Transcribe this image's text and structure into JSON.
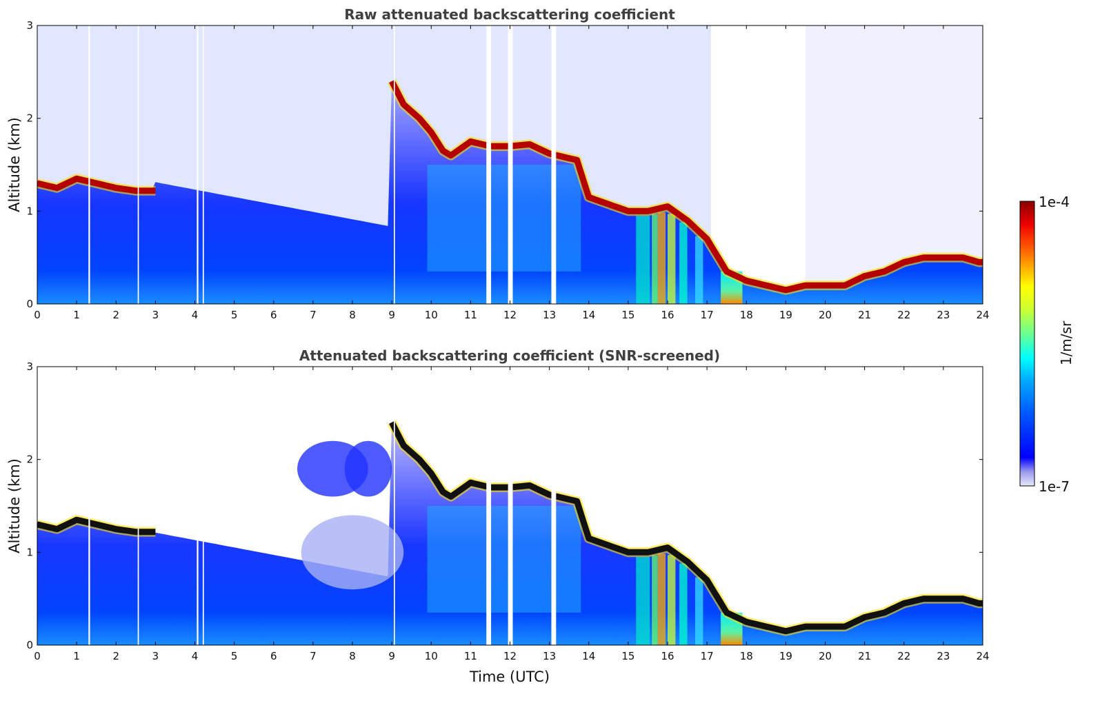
{
  "chart_data": [
    {
      "type": "heatmap",
      "title": "Raw attenuated backscattering coefficient",
      "ylabel": "Altitude (km)",
      "xlabel": "",
      "xlim": [
        0,
        24
      ],
      "ylim": [
        0,
        3
      ],
      "x_ticks": [
        "0",
        "1",
        "2",
        "3",
        "4",
        "5",
        "6",
        "7",
        "8",
        "9",
        "10",
        "11",
        "12",
        "13",
        "14",
        "15",
        "16",
        "17",
        "18",
        "19",
        "20",
        "21",
        "22",
        "23",
        "24"
      ],
      "y_ticks": [
        "0",
        "1",
        "2",
        "3"
      ],
      "colorscale": "jet",
      "cloud_layer": {
        "x": [
          0,
          0.5,
          1.0,
          1.5,
          2.0,
          2.5,
          3.0,
          9.0,
          9.3,
          9.7,
          10.0,
          10.3,
          10.5,
          11.0,
          11.5,
          12.0,
          12.5,
          13.0,
          13.5,
          13.7,
          14.0,
          15.0,
          15.5,
          16.0,
          16.5,
          17.0,
          17.5,
          18.0,
          18.5,
          19.0,
          19.5,
          20.0,
          20.5,
          21.0,
          21.5,
          22.0,
          22.5,
          23.0,
          23.5,
          23.9
        ],
        "y": [
          1.3,
          1.25,
          1.35,
          1.3,
          1.25,
          1.22,
          1.22,
          2.4,
          2.15,
          2.0,
          1.85,
          1.65,
          1.6,
          1.75,
          1.7,
          1.7,
          1.72,
          1.62,
          1.57,
          1.55,
          1.15,
          1.0,
          1.0,
          1.05,
          0.9,
          0.7,
          0.35,
          0.25,
          0.2,
          0.15,
          0.2,
          0.2,
          0.2,
          0.3,
          0.35,
          0.45,
          0.5,
          0.5,
          0.5,
          0.45
        ]
      }
    },
    {
      "type": "heatmap",
      "title": "Attenuated backscattering coefficient (SNR-screened)",
      "ylabel": "Altitude (km)",
      "xlabel": "Time (UTC)",
      "xlim": [
        0,
        24
      ],
      "ylim": [
        0,
        3
      ],
      "x_ticks": [
        "0",
        "1",
        "2",
        "3",
        "4",
        "5",
        "6",
        "7",
        "8",
        "9",
        "10",
        "11",
        "12",
        "13",
        "14",
        "15",
        "16",
        "17",
        "18",
        "19",
        "20",
        "21",
        "22",
        "23",
        "24"
      ],
      "y_ticks": [
        "0",
        "1",
        "2",
        "3"
      ],
      "colorscale": "jet",
      "cloud_layer": {
        "x": [
          0,
          0.5,
          1.0,
          1.5,
          2.0,
          2.5,
          3.0,
          9.0,
          9.3,
          9.7,
          10.0,
          10.3,
          10.5,
          11.0,
          11.5,
          12.0,
          12.5,
          13.0,
          13.5,
          13.7,
          14.0,
          15.0,
          15.5,
          16.0,
          16.5,
          17.0,
          17.5,
          18.0,
          18.5,
          19.0,
          19.5,
          20.0,
          20.5,
          21.0,
          21.5,
          22.0,
          22.5,
          23.0,
          23.5,
          23.9
        ],
        "y": [
          1.3,
          1.25,
          1.35,
          1.3,
          1.25,
          1.22,
          1.22,
          2.4,
          2.15,
          2.0,
          1.85,
          1.65,
          1.6,
          1.75,
          1.7,
          1.7,
          1.72,
          1.62,
          1.57,
          1.55,
          1.15,
          1.0,
          1.0,
          1.05,
          0.9,
          0.7,
          0.35,
          0.25,
          0.2,
          0.15,
          0.2,
          0.2,
          0.2,
          0.3,
          0.35,
          0.45,
          0.5,
          0.5,
          0.5,
          0.45
        ]
      }
    }
  ],
  "colorbar": {
    "label": "1/m/sr",
    "max_label": "1e-4",
    "min_label": "1e-7",
    "colors": [
      "#e8e8f8",
      "#9999ee",
      "#0000ff",
      "#0055ff",
      "#00aaff",
      "#00ffff",
      "#66ff99",
      "#ccff33",
      "#ffff00",
      "#ffaa00",
      "#ff5500",
      "#ee0000",
      "#880000"
    ]
  }
}
